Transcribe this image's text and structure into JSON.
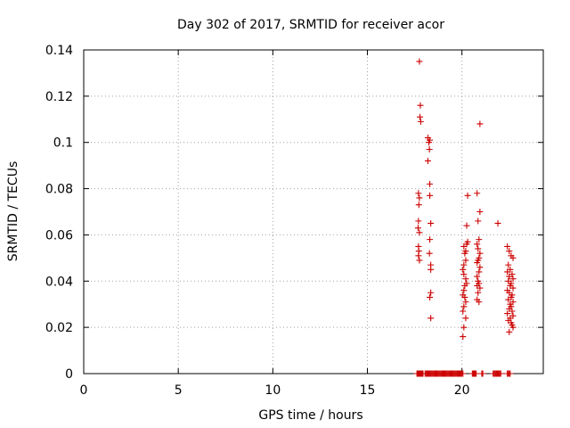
{
  "chart_data": {
    "type": "scatter",
    "title": "Day 302 of 2017, SRMTID for receiver acor",
    "xlabel": "GPS time / hours",
    "ylabel": "SRMTID / TECUs",
    "xlim": [
      0,
      24.3
    ],
    "ylim": [
      0,
      0.14
    ],
    "xticks": [
      0,
      5,
      10,
      15,
      20
    ],
    "xtick_labels": [
      "0",
      "5",
      "10",
      "15",
      "20"
    ],
    "yticks": [
      0,
      0.02,
      0.04,
      0.06,
      0.08,
      0.1,
      0.12,
      0.14
    ],
    "ytick_labels": [
      "0",
      "0.02",
      "0.04",
      "0.06",
      "0.08",
      "0.1",
      "0.12",
      "0.14"
    ],
    "grid": true,
    "marker": "+",
    "series": [
      {
        "name": "SRMTID",
        "color": "#cc0000",
        "points": [
          [
            17.75,
            0.135
          ],
          [
            17.8,
            0.116
          ],
          [
            17.78,
            0.111
          ],
          [
            17.82,
            0.109
          ],
          [
            17.7,
            0.078
          ],
          [
            17.75,
            0.076
          ],
          [
            17.72,
            0.073
          ],
          [
            17.7,
            0.066
          ],
          [
            17.68,
            0.063
          ],
          [
            17.75,
            0.061
          ],
          [
            17.7,
            0.055
          ],
          [
            17.72,
            0.053
          ],
          [
            17.7,
            0.051
          ],
          [
            17.75,
            0.049
          ],
          [
            18.2,
            0.102
          ],
          [
            18.25,
            0.1
          ],
          [
            18.3,
            0.101
          ],
          [
            18.28,
            0.097
          ],
          [
            18.2,
            0.092
          ],
          [
            18.3,
            0.082
          ],
          [
            18.3,
            0.077
          ],
          [
            18.35,
            0.065
          ],
          [
            18.3,
            0.058
          ],
          [
            18.28,
            0.052
          ],
          [
            18.35,
            0.047
          ],
          [
            18.35,
            0.045
          ],
          [
            18.35,
            0.035
          ],
          [
            18.3,
            0.033
          ],
          [
            18.35,
            0.024
          ],
          [
            20.1,
            0.055
          ],
          [
            20.2,
            0.053
          ],
          [
            20.15,
            0.052
          ],
          [
            20.3,
            0.057
          ],
          [
            20.25,
            0.056
          ],
          [
            20.2,
            0.049
          ],
          [
            20.1,
            0.047
          ],
          [
            20.05,
            0.045
          ],
          [
            20.1,
            0.043
          ],
          [
            20.2,
            0.041
          ],
          [
            20.25,
            0.039
          ],
          [
            20.15,
            0.038
          ],
          [
            20.1,
            0.036
          ],
          [
            20.05,
            0.034
          ],
          [
            20.15,
            0.033
          ],
          [
            20.2,
            0.031
          ],
          [
            20.1,
            0.029
          ],
          [
            20.05,
            0.027
          ],
          [
            20.2,
            0.024
          ],
          [
            20.1,
            0.02
          ],
          [
            20.05,
            0.016
          ],
          [
            20.3,
            0.077
          ],
          [
            20.25,
            0.064
          ],
          [
            20.8,
            0.078
          ],
          [
            20.85,
            0.066
          ],
          [
            20.9,
            0.058
          ],
          [
            20.8,
            0.056
          ],
          [
            20.85,
            0.054
          ],
          [
            20.95,
            0.052
          ],
          [
            20.9,
            0.05
          ],
          [
            20.85,
            0.049
          ],
          [
            20.8,
            0.048
          ],
          [
            20.95,
            0.046
          ],
          [
            20.9,
            0.044
          ],
          [
            20.8,
            0.042
          ],
          [
            20.85,
            0.04
          ],
          [
            20.9,
            0.039
          ],
          [
            20.8,
            0.038
          ],
          [
            20.95,
            0.037
          ],
          [
            20.85,
            0.035
          ],
          [
            20.8,
            0.032
          ],
          [
            20.9,
            0.031
          ],
          [
            20.95,
            0.108
          ],
          [
            20.95,
            0.07
          ],
          [
            21.9,
            0.065
          ],
          [
            22.4,
            0.055
          ],
          [
            22.5,
            0.053
          ],
          [
            22.6,
            0.051
          ],
          [
            22.7,
            0.05
          ],
          [
            22.45,
            0.047
          ],
          [
            22.55,
            0.045
          ],
          [
            22.4,
            0.044
          ],
          [
            22.65,
            0.043
          ],
          [
            22.5,
            0.042
          ],
          [
            22.7,
            0.041
          ],
          [
            22.45,
            0.04
          ],
          [
            22.6,
            0.039
          ],
          [
            22.55,
            0.038
          ],
          [
            22.7,
            0.037
          ],
          [
            22.4,
            0.036
          ],
          [
            22.5,
            0.035
          ],
          [
            22.65,
            0.034
          ],
          [
            22.6,
            0.033
          ],
          [
            22.45,
            0.032
          ],
          [
            22.7,
            0.031
          ],
          [
            22.55,
            0.03
          ],
          [
            22.6,
            0.029
          ],
          [
            22.5,
            0.028
          ],
          [
            22.65,
            0.027
          ],
          [
            22.4,
            0.026
          ],
          [
            22.55,
            0.024
          ],
          [
            22.6,
            0.022
          ],
          [
            22.7,
            0.02
          ],
          [
            22.5,
            0.018
          ],
          [
            22.65,
            0.021
          ],
          [
            22.45,
            0.023
          ],
          [
            22.7,
            0.025
          ],
          [
            17.62,
            0
          ],
          [
            17.66,
            0
          ],
          [
            17.7,
            0
          ],
          [
            17.74,
            0
          ],
          [
            17.78,
            0
          ],
          [
            17.82,
            0
          ],
          [
            17.86,
            0
          ],
          [
            17.9,
            0
          ],
          [
            17.94,
            0
          ],
          [
            18.05,
            0
          ],
          [
            18.1,
            0
          ],
          [
            18.15,
            0
          ],
          [
            18.2,
            0
          ],
          [
            18.25,
            0
          ],
          [
            18.3,
            0
          ],
          [
            18.35,
            0
          ],
          [
            18.4,
            0
          ],
          [
            18.45,
            0
          ],
          [
            18.5,
            0
          ],
          [
            18.55,
            0
          ],
          [
            18.6,
            0
          ],
          [
            18.65,
            0
          ],
          [
            18.7,
            0
          ],
          [
            18.75,
            0
          ],
          [
            18.8,
            0
          ],
          [
            18.85,
            0
          ],
          [
            18.9,
            0
          ],
          [
            18.95,
            0
          ],
          [
            19.0,
            0
          ],
          [
            19.05,
            0
          ],
          [
            19.1,
            0
          ],
          [
            19.15,
            0
          ],
          [
            19.2,
            0
          ],
          [
            19.25,
            0
          ],
          [
            19.3,
            0
          ],
          [
            19.35,
            0
          ],
          [
            19.4,
            0
          ],
          [
            19.45,
            0
          ],
          [
            19.5,
            0
          ],
          [
            19.55,
            0
          ],
          [
            19.6,
            0
          ],
          [
            19.65,
            0
          ],
          [
            19.7,
            0
          ],
          [
            19.75,
            0
          ],
          [
            19.8,
            0
          ],
          [
            19.85,
            0
          ],
          [
            19.9,
            0
          ],
          [
            19.95,
            0
          ],
          [
            20.0,
            0
          ],
          [
            20.05,
            0
          ],
          [
            20.55,
            0
          ],
          [
            20.6,
            0
          ],
          [
            20.65,
            0
          ],
          [
            20.7,
            0
          ],
          [
            20.75,
            0
          ],
          [
            21.05,
            0
          ],
          [
            21.1,
            0
          ],
          [
            21.65,
            0
          ],
          [
            21.7,
            0
          ],
          [
            21.75,
            0
          ],
          [
            21.8,
            0
          ],
          [
            21.85,
            0
          ],
          [
            21.9,
            0
          ],
          [
            21.95,
            0
          ],
          [
            22.0,
            0
          ],
          [
            22.05,
            0
          ],
          [
            22.4,
            0
          ],
          [
            22.45,
            0
          ],
          [
            22.5,
            0
          ],
          [
            22.55,
            0
          ]
        ]
      }
    ]
  }
}
